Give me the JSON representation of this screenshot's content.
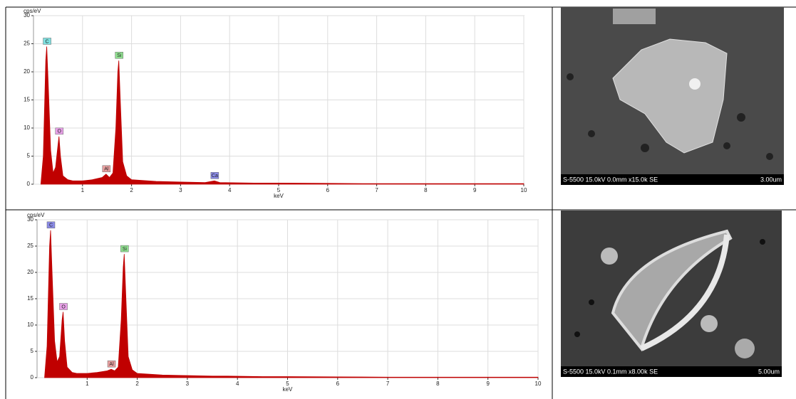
{
  "chart_data": [
    {
      "type": "area",
      "y_label": "cps/eV",
      "x_label": "keV",
      "color": "#c00000",
      "grid": true,
      "xlim": [
        0,
        10
      ],
      "xticks": [
        1,
        2,
        3,
        4,
        5,
        6,
        7,
        8,
        9,
        10
      ],
      "ylim": [
        0,
        30
      ],
      "yticks": [
        0,
        5,
        10,
        15,
        20,
        25,
        30
      ],
      "x": [
        0.15,
        0.2,
        0.25,
        0.27,
        0.3,
        0.35,
        0.4,
        0.45,
        0.5,
        0.52,
        0.55,
        0.6,
        0.7,
        0.8,
        1.0,
        1.2,
        1.4,
        1.48,
        1.55,
        1.62,
        1.68,
        1.72,
        1.74,
        1.77,
        1.82,
        1.9,
        2.0,
        2.5,
        3.0,
        3.5,
        3.69,
        3.8,
        4.5,
        5,
        6,
        7,
        8,
        9,
        10
      ],
      "values": [
        0,
        5,
        22,
        24.5,
        18,
        6,
        2,
        3,
        7,
        8.5,
        5,
        1.5,
        0.8,
        0.6,
        0.6,
        0.8,
        1.2,
        1.8,
        1.2,
        2,
        10,
        20,
        22,
        15,
        4,
        1.5,
        0.8,
        0.5,
        0.4,
        0.3,
        0.6,
        0.3,
        0.2,
        0.2,
        0.15,
        0.1,
        0.1,
        0.1,
        0.1
      ],
      "annotations": [
        {
          "text": "C",
          "x": 0.27,
          "color": "#7fe0e0"
        },
        {
          "text": "O",
          "x": 0.52,
          "color": "#e8a0e8"
        },
        {
          "text": "Al",
          "x": 1.48,
          "color": "#e8a0a0"
        },
        {
          "text": "Si",
          "x": 1.74,
          "color": "#90e090"
        },
        {
          "text": "Ca",
          "x": 3.69,
          "color": "#8a8ae6"
        }
      ]
    },
    {
      "type": "area",
      "y_label": "cps/eV",
      "x_label": "keV",
      "color": "#c00000",
      "grid": true,
      "xlim": [
        0,
        10
      ],
      "xticks": [
        1,
        2,
        3,
        4,
        5,
        6,
        7,
        8,
        9,
        10
      ],
      "ylim": [
        0,
        30
      ],
      "yticks": [
        0,
        5,
        10,
        15,
        20,
        25,
        30
      ],
      "x": [
        0.15,
        0.2,
        0.25,
        0.27,
        0.3,
        0.35,
        0.4,
        0.45,
        0.5,
        0.52,
        0.55,
        0.6,
        0.7,
        0.8,
        1.0,
        1.2,
        1.4,
        1.48,
        1.55,
        1.62,
        1.68,
        1.72,
        1.74,
        1.77,
        1.82,
        1.9,
        2.0,
        2.5,
        3.0,
        3.5,
        3.69,
        3.8,
        4.5,
        5,
        6,
        7,
        8,
        9,
        10
      ],
      "values": [
        0,
        6,
        25,
        28,
        20,
        7,
        3,
        4,
        11,
        12.5,
        7,
        2,
        1,
        0.8,
        0.8,
        1,
        1.3,
        1.6,
        1.3,
        2,
        11,
        21,
        23.5,
        16,
        4,
        1.5,
        0.8,
        0.5,
        0.4,
        0.3,
        0.3,
        0.3,
        0.2,
        0.2,
        0.15,
        0.1,
        0.1,
        0.1,
        0.1
      ],
      "annotations": [
        {
          "text": "C",
          "x": 0.27,
          "color": "#8a8ae6"
        },
        {
          "text": "O",
          "x": 0.52,
          "color": "#e8a0e8"
        },
        {
          "text": "Al",
          "x": 1.48,
          "color": "#e8a0a0"
        },
        {
          "text": "Si",
          "x": 1.74,
          "color": "#90e090"
        }
      ]
    }
  ],
  "images": [
    {
      "caption": "S-5500 15.0kV 0.0mm x15.0k SE",
      "scale": "3.00um"
    },
    {
      "caption": "S-5500 15.0kV 0.1mm x8.00k SE",
      "scale": "5.00um"
    }
  ]
}
